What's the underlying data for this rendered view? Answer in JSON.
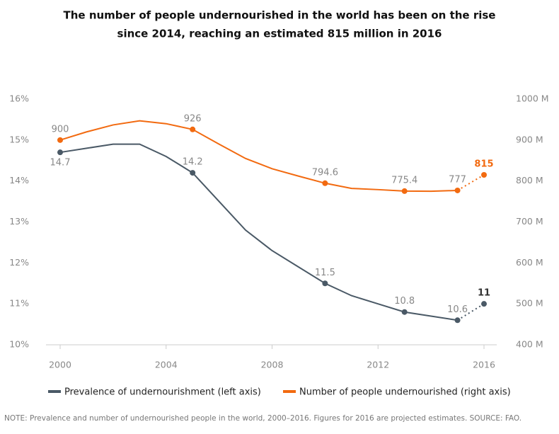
{
  "chart_data": {
    "type": "line",
    "title": [
      "The number of people undernourished in the world has been on the rise",
      "since 2014, reaching an estimated 815 million in 2016"
    ],
    "x": [
      2000,
      2001,
      2002,
      2003,
      2004,
      2005,
      2006,
      2007,
      2008,
      2009,
      2010,
      2011,
      2012,
      2013,
      2014,
      2015,
      2016
    ],
    "xlim": [
      2000,
      2016
    ],
    "xticks": [
      2000,
      2004,
      2008,
      2012,
      2016
    ],
    "ylim": [
      10,
      16
    ],
    "yticks": [
      {
        "value": 10,
        "label": "10%"
      },
      {
        "value": 11,
        "label": "11%"
      },
      {
        "value": 12,
        "label": "12%"
      },
      {
        "value": 13,
        "label": "13%"
      },
      {
        "value": 14,
        "label": "14%"
      },
      {
        "value": 15,
        "label": "15%"
      },
      {
        "value": 16,
        "label": "16%"
      }
    ],
    "y2lim": [
      400,
      1000
    ],
    "y2ticks": [
      {
        "value": 400,
        "label": "400 M"
      },
      {
        "value": 500,
        "label": "500 M"
      },
      {
        "value": 600,
        "label": "600 M"
      },
      {
        "value": 700,
        "label": "700 M"
      },
      {
        "value": 800,
        "label": "800 M"
      },
      {
        "value": 900,
        "label": "900 M"
      },
      {
        "value": 1000,
        "label": "1000 M"
      }
    ],
    "grid": false,
    "projected_last_segment": true,
    "series": [
      {
        "name": "Prevalence of undernourishment (left axis)",
        "color": "#4a5966",
        "values": [
          14.7,
          14.8,
          14.9,
          14.9,
          14.6,
          14.2,
          13.5,
          12.8,
          12.3,
          11.9,
          11.5,
          11.2,
          11.0,
          10.8,
          10.7,
          10.6,
          11
        ],
        "value_labels": [
          "14.7",
          null,
          null,
          null,
          null,
          "14.2",
          null,
          null,
          null,
          null,
          "11.5",
          null,
          null,
          "10.8",
          null,
          "10.6",
          "11"
        ]
      },
      {
        "name": "Number of people undernourished (right axis)",
        "color": "#f26a10",
        "axis": "y2",
        "values": [
          900,
          920,
          937,
          947,
          940,
          926,
          890,
          855,
          830,
          812,
          794.6,
          782,
          779,
          775.4,
          775,
          777,
          815
        ],
        "value_labels": [
          "900",
          null,
          null,
          null,
          null,
          "926",
          null,
          null,
          null,
          null,
          "794.6",
          null,
          null,
          "775.4",
          null,
          "777",
          "815"
        ]
      }
    ],
    "note": "NOTE: Prevalence and number of undernourished people in the world, 2000–2016. Figures for 2016 are projected estimates. SOURCE: FAO."
  }
}
